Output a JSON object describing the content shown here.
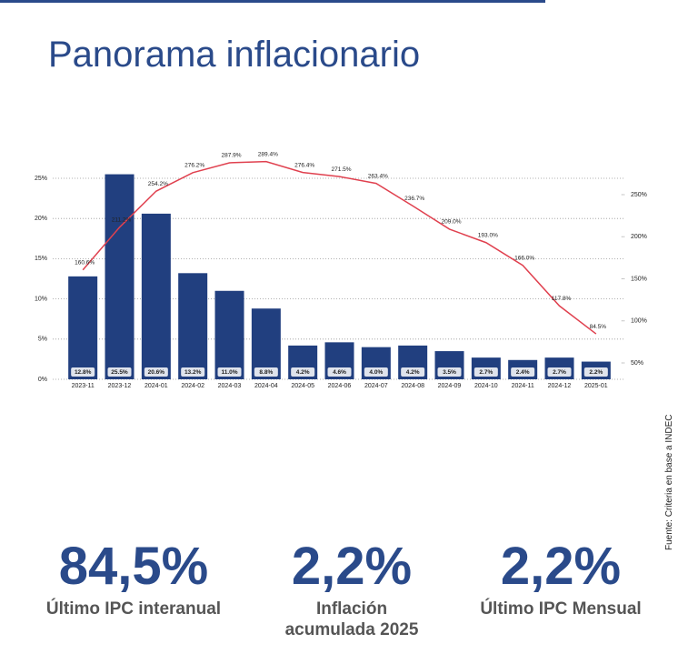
{
  "title": "Panorama inflacionario",
  "chart_data": {
    "type": "bar",
    "categories": [
      "2023-11",
      "2023-12",
      "2024-01",
      "2024-02",
      "2024-03",
      "2024-04",
      "2024-05",
      "2024-06",
      "2024-07",
      "2024-08",
      "2024-09",
      "2024-10",
      "2024-11",
      "2024-12",
      "2025-01"
    ],
    "series": [
      {
        "type": "bar",
        "color": "#213f7f",
        "values": [
          12.8,
          25.5,
          20.6,
          13.2,
          11.0,
          8.8,
          4.2,
          4.6,
          4.0,
          4.2,
          3.5,
          2.7,
          2.4,
          2.7,
          2.2
        ],
        "value_labels": [
          "12.8%",
          "25.5%",
          "20.6%",
          "13.2%",
          "11.0%",
          "8.8%",
          "4.2%",
          "4.6%",
          "4.0%",
          "4.2%",
          "3.5%",
          "2.7%",
          "2.4%",
          "2.7%",
          "2.2%"
        ]
      },
      {
        "type": "line",
        "axis": "y2",
        "color": "#e0414f",
        "values": [
          160.6,
          211.2,
          254.2,
          276.2,
          287.9,
          289.4,
          276.4,
          271.5,
          263.4,
          236.7,
          209.0,
          193.0,
          166.0,
          117.8,
          84.5
        ],
        "value_labels": [
          "160.6%",
          "211.2%",
          "254.2%",
          "276.2%",
          "287.9%",
          "289.4%",
          "276.4%",
          "271.5%",
          "263.4%",
          "236.7%",
          "209.0%",
          "193.0%",
          "166.0%",
          "117.8%",
          "84.5%"
        ]
      }
    ],
    "ylim": [
      0,
      25
    ],
    "yticks": [
      {
        "value": 0,
        "label": "0%"
      },
      {
        "value": 5,
        "label": "5%"
      },
      {
        "value": 10,
        "label": "10%"
      },
      {
        "value": 15,
        "label": "15%"
      },
      {
        "value": 20,
        "label": "20%"
      },
      {
        "value": 25,
        "label": "25%"
      }
    ],
    "y2lim": [
      30.5,
      269.5
    ],
    "y2ticks": [
      {
        "value": 50,
        "label": "50%"
      },
      {
        "value": 100,
        "label": "100%"
      },
      {
        "value": 150,
        "label": "150%"
      },
      {
        "value": 200,
        "label": "200%"
      },
      {
        "value": 250,
        "label": "250%"
      }
    ],
    "grid": true
  },
  "stats": [
    {
      "value": "84,5%",
      "label": "Último IPC interanual"
    },
    {
      "value": "2,2%",
      "label": "Inflación acumulada 2025"
    },
    {
      "value": "2,2%",
      "label": "Último IPC Mensual"
    }
  ],
  "source": "Fuente: Criteria en base a INDEC"
}
